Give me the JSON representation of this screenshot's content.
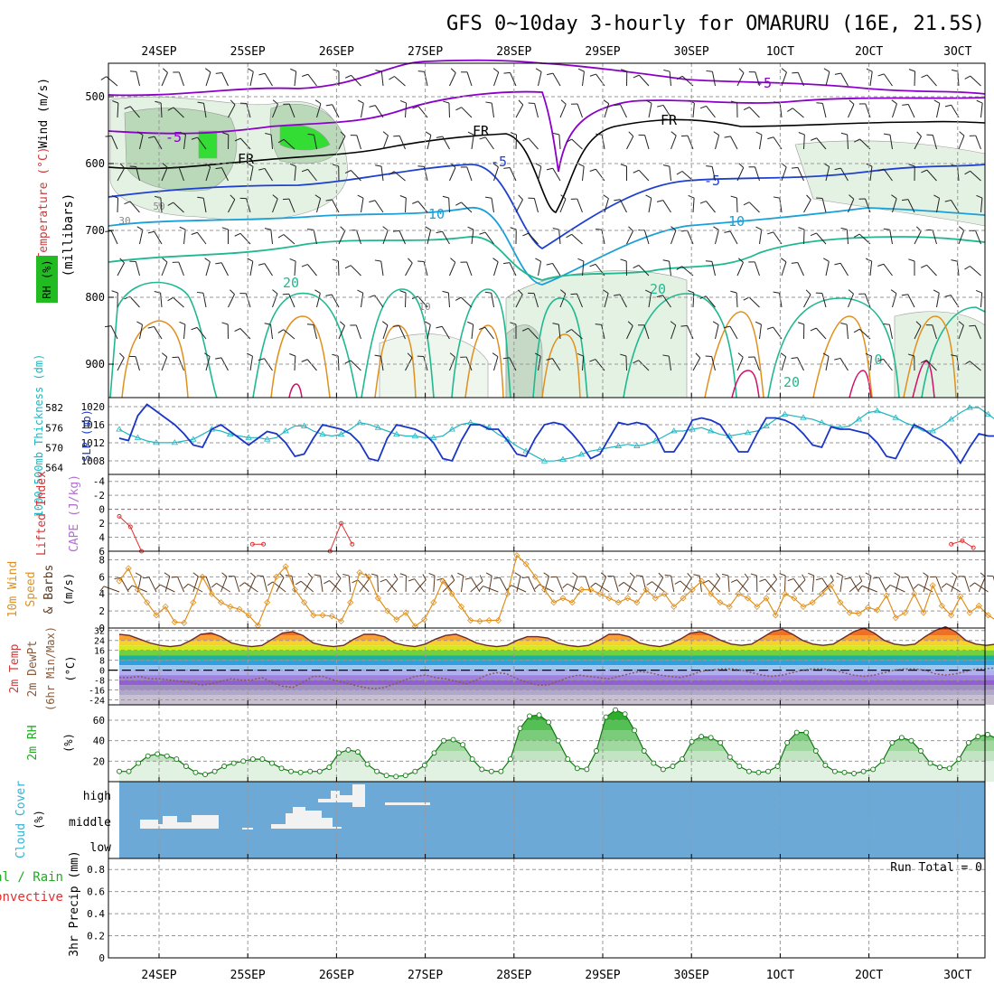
{
  "title": "GFS 0~10day 3-hourly for OMARURU (16E, 21.5S)",
  "x_axis": {
    "top_labels": [
      "24SEP",
      "25SEP",
      "26SEP",
      "27SEP",
      "28SEP",
      "29SEP",
      "30SEP",
      "1OCT",
      "2OCT",
      "3OCT"
    ],
    "bottom_labels": [
      "24SEP",
      "25SEP",
      "26SEP",
      "27SEP",
      "28SEP",
      "29SEP",
      "30SEP",
      "1OCT",
      "2OCT",
      "3OCT"
    ],
    "day_start_hours_from_run": 0,
    "total_hours": 240
  },
  "colors": {
    "blue_box": "#6ca9d6",
    "rh_green": "#22bb22",
    "temp_purple": "#8a00c8",
    "temp_blue": "#1f3fcf",
    "temp_cyan": "#1aa0d8",
    "temp_teal": "#20b890",
    "temp_orange": "#e0901e",
    "temp_magenta": "#d0106a",
    "slp_blue": "#1a36c4",
    "thick_cyan": "#22b6c0",
    "li_red": "#e03030",
    "wind_orange": "#e0901e",
    "rh2m_green": "#22aa22",
    "cape_purple": "#b070d0"
  },
  "chart_data": [
    {
      "panel": "upper-air",
      "type": "heatmap",
      "ylabel_wind": "Wind (m/s)",
      "ylabel_temp": "Temperature (°C)",
      "ylabel_rh": "RH (%)",
      "ylabel_pressure": "(millibars)",
      "y_ticks": [
        "500",
        "600",
        "700",
        "800",
        "900"
      ],
      "y_tick_values": [
        500,
        600,
        700,
        800,
        900
      ],
      "ylim": [
        450,
        950
      ],
      "contour_labels": [
        "-5",
        "-5",
        "FR",
        "FR",
        "FR",
        "-5",
        "-5",
        "10",
        "10",
        "20",
        "20",
        "20",
        "0",
        "30",
        "50",
        "10"
      ],
      "isotherms_c": [
        -5,
        0,
        5,
        10,
        15,
        20,
        25,
        30
      ]
    },
    {
      "panel": "slp-thickness",
      "type": "line",
      "ylabel_left": "1000-500mb Thickness (dm)",
      "ylabel_right": "SLP (mb)",
      "left_ticks": [
        "582",
        "576",
        "570",
        "564"
      ],
      "left_tick_values": [
        582,
        576,
        570,
        564
      ],
      "right_ticks": [
        "1020",
        "1016",
        "1012",
        "1008"
      ],
      "right_tick_values": [
        1020,
        1016,
        1012,
        1008
      ],
      "ylim_slp": [
        1005,
        1022
      ],
      "series": [
        {
          "name": "SLP",
          "values": [
            1013,
            1012.5,
            1018,
            1020.5,
            1019,
            1017.5,
            1016,
            1014,
            1011.5,
            1011,
            1015,
            1016,
            1014.5,
            1013,
            1011.5,
            1013,
            1014.5,
            1014,
            1012,
            1009,
            1009.5,
            1013,
            1016,
            1015.5,
            1015,
            1014,
            1012,
            1008.5,
            1008,
            1013,
            1016,
            1015.5,
            1015,
            1014,
            1012,
            1008.5,
            1008,
            1012.5,
            1016,
            1016,
            1015,
            1015,
            1012.5,
            1009.5,
            1009,
            1013,
            1016,
            1016.5,
            1016,
            1014,
            1011.5,
            1008.5,
            1009.5,
            1013,
            1016.5,
            1016,
            1016.5,
            1016,
            1014,
            1010,
            1010,
            1013,
            1017,
            1017.5,
            1017,
            1016,
            1013,
            1010,
            1010,
            1014,
            1017.5,
            1017.5,
            1017,
            1016,
            1014,
            1011.5,
            1011,
            1015.5,
            1015,
            1015,
            1014.5,
            1014,
            1012,
            1009,
            1008.5,
            1012.5,
            1016,
            1015,
            1013.5,
            1012.5,
            1010.5,
            1007.5,
            1011,
            1014,
            1013.5,
            1013.5
          ]
        },
        {
          "name": "Thickness",
          "values": [
            575.5,
            574,
            573,
            572,
            571.5,
            571.5,
            571.5,
            572,
            572.5,
            574,
            575.5,
            575,
            574,
            573.5,
            573,
            573,
            572.5,
            573,
            575,
            576.5,
            576.5,
            575,
            574,
            573.5,
            574,
            575.5,
            577.5,
            577,
            576,
            575,
            574,
            573.5,
            573.5,
            573,
            573,
            573.5,
            575.5,
            577,
            577.5,
            577,
            576,
            574,
            572.5,
            570.5,
            569,
            567.5,
            566,
            566,
            566.5,
            567,
            568,
            569,
            569.5,
            570,
            570.5,
            571,
            570.5,
            571,
            572,
            573.5,
            575,
            575,
            575.5,
            576,
            575,
            574,
            573.5,
            574,
            574.5,
            575,
            576.5,
            578.5,
            580,
            579.5,
            579,
            578.5,
            577.5,
            576.5,
            576,
            576.5,
            578.5,
            580.5,
            581,
            580,
            579,
            577.5,
            576.5,
            575,
            575,
            576.5,
            578.5,
            580.5,
            582,
            582,
            580,
            578,
            577.5,
            577.5
          ]
        }
      ]
    },
    {
      "panel": "lifted-index",
      "type": "line",
      "ylabel_left": "Lifted Index",
      "ylabel_right": "CAPE (J/kg)",
      "y_ticks": [
        "-4",
        "-2",
        "0",
        "2",
        "4",
        "6"
      ],
      "y_tick_values": [
        -4,
        -2,
        0,
        2,
        4,
        6
      ],
      "ylim": [
        -5,
        6
      ],
      "series": [
        {
          "name": "LI segment 1",
          "x_hours": [
            0,
            3,
            6
          ],
          "values": [
            1,
            2.5,
            6
          ]
        },
        {
          "name": "LI segment 2",
          "x_hours": [
            36,
            39
          ],
          "values": [
            5,
            5
          ]
        },
        {
          "name": "LI segment 3",
          "x_hours": [
            57,
            60,
            63
          ],
          "values": [
            6,
            2,
            5
          ]
        },
        {
          "name": "LI segment 4",
          "x_hours": [
            225,
            228,
            231
          ],
          "values": [
            5,
            4.5,
            5.5
          ]
        }
      ]
    },
    {
      "panel": "10m-wind",
      "type": "line",
      "ylabel_a": "10m Wind",
      "ylabel_b": "Speed",
      "ylabel_c": "& Barbs",
      "ylabel_unit": "(m/s)",
      "y_ticks": [
        "8",
        "6",
        "4",
        "2",
        "0"
      ],
      "y_tick_values": [
        8,
        6,
        4,
        2,
        0
      ],
      "ylim": [
        0,
        9
      ],
      "series": [
        {
          "name": "10m wind speed",
          "values": [
            5.5,
            7,
            4.5,
            3,
            1.5,
            2.5,
            0.7,
            0.6,
            3,
            6,
            4,
            3,
            2.5,
            2.2,
            1.5,
            0.3,
            3,
            6,
            7.2,
            4.5,
            3,
            1.5,
            1.5,
            1.4,
            0.8,
            3,
            6.5,
            6,
            3.5,
            2,
            1,
            1.8,
            0.2,
            1,
            3,
            5.5,
            4,
            2.5,
            0.9,
            0.8,
            0.9,
            0.9,
            4,
            8.5,
            7.5,
            6,
            4.5,
            3,
            3.5,
            3,
            4.5,
            4.5,
            4,
            3.5,
            3,
            3.5,
            3,
            4.5,
            3.5,
            4,
            2.5,
            3.5,
            4.5,
            5.5,
            4,
            3,
            2.5,
            4,
            3.5,
            2.5,
            3.5,
            1.5,
            4,
            3.5,
            2.5,
            3,
            4,
            5,
            3,
            1.8,
            1.7,
            2.4,
            2.1,
            3.8,
            1.2,
            1.8,
            4,
            1.8,
            5,
            2.6,
            1.5,
            3.7,
            1.8,
            2.6,
            1.5,
            0.8
          ]
        }
      ]
    },
    {
      "panel": "2m-temp",
      "type": "area",
      "ylabel_a": "2m Temp",
      "ylabel_b": "2m DewPt",
      "ylabel_c": "(6hr Min/Max)",
      "ylabel_unit": "(°C)",
      "y_ticks": [
        "32",
        "24",
        "16",
        "8",
        "0",
        "-8",
        "-16",
        "-24"
      ],
      "y_tick_values": [
        32,
        24,
        16,
        8,
        0,
        -8,
        -16,
        -24
      ],
      "ylim": [
        -28,
        34
      ],
      "series": [
        {
          "name": "2m temperature",
          "values": [
            29,
            28,
            25,
            22,
            20,
            19,
            20,
            24,
            29,
            30,
            27,
            22,
            20,
            19,
            20,
            25,
            30,
            31,
            28,
            22,
            20,
            19,
            20,
            25,
            29,
            29,
            27,
            22,
            20,
            19,
            21,
            25,
            28,
            29,
            26,
            22,
            20,
            19,
            20,
            24,
            27,
            27,
            26,
            22,
            20,
            19,
            20,
            24,
            29,
            29,
            27,
            22,
            20,
            19,
            21,
            25,
            30,
            31,
            28,
            24,
            21,
            20,
            21,
            26,
            31,
            33,
            29,
            24,
            21,
            20,
            21,
            26,
            31,
            34,
            30,
            24,
            21,
            20,
            21,
            27,
            32,
            35,
            31,
            24,
            21,
            20,
            21,
            24
          ]
        },
        {
          "name": "2m dewpoint",
          "values": [
            -6,
            -6,
            -5,
            -7,
            -7,
            -8,
            -9,
            -10,
            -12,
            -11,
            -9,
            -7,
            -8,
            -8,
            -6,
            -10,
            -13,
            -14,
            -10,
            -5,
            -5,
            -8,
            -10,
            -12,
            -14,
            -15,
            -14,
            -11,
            -8,
            -5,
            -4,
            -6,
            -7,
            -9,
            -11,
            -8,
            -4,
            -2,
            -3,
            -7,
            -10,
            -12,
            -12,
            -9,
            -6,
            -4,
            -5,
            -6,
            -7,
            -5,
            -3,
            -1,
            -2,
            -4,
            -5,
            -6,
            -4,
            -1,
            0,
            1,
            1,
            0,
            -2,
            -4,
            -5,
            -4,
            -2,
            0,
            1,
            1,
            0,
            -2,
            -4,
            -5,
            -4,
            -2,
            0,
            1,
            1,
            0,
            -3,
            -4,
            -3,
            -1,
            1,
            1,
            2,
            1
          ]
        }
      ]
    },
    {
      "panel": "2m-rh",
      "type": "area",
      "ylabel": "2m RH",
      "ylabel_unit": "(%)",
      "y_ticks": [
        "60",
        "40",
        "20"
      ],
      "y_tick_values": [
        60,
        40,
        20
      ],
      "ylim": [
        0,
        75
      ],
      "series": [
        {
          "name": "2m relative humidity",
          "values": [
            10,
            10,
            18,
            25,
            27,
            25,
            22,
            15,
            9,
            7,
            10,
            15,
            18,
            20,
            22,
            22,
            18,
            13,
            10,
            9,
            10,
            10,
            14,
            28,
            31,
            29,
            17,
            10,
            6,
            5,
            6,
            10,
            16,
            28,
            40,
            41,
            36,
            22,
            12,
            10,
            10,
            22,
            52,
            64,
            65,
            58,
            40,
            22,
            13,
            12,
            30,
            63,
            70,
            66,
            50,
            30,
            18,
            12,
            15,
            22,
            39,
            44,
            43,
            38,
            24,
            15,
            10,
            9,
            10,
            15,
            38,
            48,
            48,
            30,
            16,
            10,
            9,
            8,
            10,
            12,
            20,
            38,
            43,
            40,
            30,
            18,
            14,
            13,
            22,
            38,
            44,
            46,
            42,
            28
          ]
        }
      ]
    },
    {
      "panel": "cloud-cover",
      "type": "table",
      "ylabel_a": "Cloud Cover",
      "ylabel_b": "(%)",
      "levels": [
        "high",
        "middle",
        "low"
      ]
    },
    {
      "panel": "precip",
      "type": "bar",
      "ylabel_a": "Total / Rain",
      "ylabel_b": "Convective",
      "ylabel_c": "3hr Precip (mm)",
      "y_ticks": [
        "0.8",
        "0.6",
        "0.4",
        "0.2",
        "0"
      ],
      "y_tick_values": [
        0.8,
        0.6,
        0.4,
        0.2,
        0
      ],
      "ylim": [
        0,
        0.9
      ],
      "run_total": "Run Total = 0",
      "values": []
    }
  ]
}
